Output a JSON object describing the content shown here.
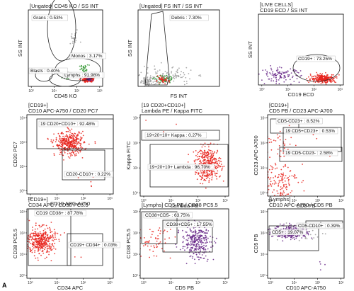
{
  "figure": {
    "panel_letter": "A"
  },
  "colors": {
    "frame": "#000000",
    "gate": "#222222",
    "red": "#e8231c",
    "purple": "#6a2a8a",
    "green": "#3a9a3a",
    "grey": "#9a9a9a",
    "label_bg": "#ffffff"
  },
  "chart_data": [
    {
      "type": "scatter",
      "title": "[Ungated] CD45 KO / SS INT",
      "xlabel": "CD45 KO",
      "ylabel": "SS INT",
      "x_scale": "log",
      "x_ticks": [
        "10⁰",
        "10¹",
        "10²",
        "10³"
      ],
      "y_scale": "linear",
      "xlim": [
        1,
        1000
      ],
      "ylim": [
        0,
        1000
      ],
      "populations": [
        {
          "label": "Grans : 0.53%",
          "color": "grey",
          "center": [
            70,
            620
          ],
          "spread": [
            0.12,
            40
          ],
          "n": 20
        },
        {
          "label": "Monos : 3.17%",
          "color": "green",
          "center": [
            180,
            220
          ],
          "spread": [
            0.1,
            30
          ],
          "n": 40
        },
        {
          "label": "Lymphs : 91.98%",
          "color": "red",
          "center": [
            250,
            95
          ],
          "spread": [
            0.1,
            18
          ],
          "n": 260
        },
        {
          "label": "Lymphs : 91.98%",
          "color": "purple",
          "center": [
            290,
            90
          ],
          "spread": [
            0.05,
            10
          ],
          "n": 50
        },
        {
          "label": "Blasts : 0.40%",
          "color": "green",
          "center": [
            40,
            110
          ],
          "spread": [
            0.1,
            15
          ],
          "n": 8
        }
      ]
    },
    {
      "type": "scatter",
      "title": "[Ungated] FS INT / SS INT",
      "xlabel": "FS INT",
      "ylabel": "SS INT",
      "x_scale": "linear",
      "x_ticks": [],
      "y_scale": "linear",
      "xlim": [
        0,
        1000
      ],
      "ylim": [
        0,
        1000
      ],
      "populations": [
        {
          "label": "Debris : 7.30%",
          "color": "grey",
          "center": [
            90,
            60
          ],
          "spread": [
            40,
            30
          ],
          "n": 60
        },
        {
          "label": "",
          "color": "grey",
          "center": [
            350,
            130
          ],
          "spread": [
            160,
            60
          ],
          "n": 120
        },
        {
          "label": "",
          "color": "green",
          "center": [
            320,
            90
          ],
          "spread": [
            60,
            25
          ],
          "n": 60
        },
        {
          "label": "",
          "color": "red",
          "center": [
            300,
            80
          ],
          "spread": [
            40,
            20
          ],
          "n": 40
        }
      ]
    },
    {
      "type": "scatter",
      "title": "[LIVE CELLS] CD19 ECD / SS INT",
      "xlabel": "CD19 ECD",
      "ylabel": "SS INT",
      "x_scale": "log",
      "x_ticks": [
        "10⁰",
        "10¹",
        "10²",
        "10³"
      ],
      "y_scale": "linear",
      "xlim": [
        1,
        1000
      ],
      "ylim": [
        0,
        1000
      ],
      "populations": [
        {
          "label": "",
          "color": "purple",
          "center": [
            6,
            140
          ],
          "spread": [
            0.35,
            50
          ],
          "n": 110
        },
        {
          "label": "CD19+ : 73.25%",
          "color": "red",
          "center": [
            200,
            90
          ],
          "spread": [
            0.22,
            30
          ],
          "n": 260
        }
      ]
    },
    {
      "type": "scatter",
      "title": "[CD19+] CD10 APC-A750 / CD20 PC7",
      "xlabel": "CD10 APC-A750",
      "ylabel": "CD20 PC7",
      "x_scale": "log",
      "x_ticks": [
        "10⁰",
        "10¹",
        "10²",
        "10³"
      ],
      "y_scale": "log",
      "y_ticks": [
        "10⁰",
        "10¹",
        "10²",
        "10³"
      ],
      "xlim": [
        1,
        1000
      ],
      "ylim": [
        1,
        1000
      ],
      "populations": [
        {
          "label": "19 CD20+CD10+ : 92.48%",
          "color": "red",
          "center": [
            30,
            80
          ],
          "spread": [
            0.25,
            0.22
          ],
          "n": 380
        },
        {
          "label": "CD20-CD10+ : 0.22%",
          "color": "red",
          "center": [
            120,
            2
          ],
          "spread": [
            0.3,
            0.2
          ],
          "n": 5
        }
      ]
    },
    {
      "type": "scatter",
      "title": "[19 CD20+CD10+] Lambda PE / Kappa FITC",
      "xlabel": "Lambda PE",
      "ylabel": "Kappa FITC",
      "x_scale": "log",
      "x_ticks": [
        "10⁰",
        "10¹",
        "10²",
        "10³"
      ],
      "y_scale": "log",
      "y_ticks": [
        "10⁰",
        "10¹",
        "10²",
        "10³"
      ],
      "xlim": [
        1,
        1000
      ],
      "ylim": [
        1,
        1000
      ],
      "populations": [
        {
          "label": "19+20+10+ Lambda : 96.70%",
          "color": "red",
          "center": [
            200,
            15
          ],
          "spread": [
            0.22,
            0.3
          ],
          "n": 380
        },
        {
          "label": "19+20+10+ Kappa : 0.27%",
          "color": "red",
          "center": [
            8,
            300
          ],
          "spread": [
            0.3,
            0.25
          ],
          "n": 4
        }
      ]
    },
    {
      "type": "scatter",
      "title": "[CD19+] CD5 PB / CD23 APC-A700",
      "xlabel": "CD5 PB",
      "ylabel": "CD23 APC-A700",
      "x_scale": "log",
      "x_ticks": [
        "10⁰",
        "10¹",
        "10²",
        "10³"
      ],
      "y_scale": "log",
      "y_ticks": [
        "10⁰",
        "10¹",
        "10²",
        "10³"
      ],
      "xlim": [
        1,
        1000
      ],
      "ylim": [
        1,
        1000
      ],
      "populations": [
        {
          "label": "CD5-CD23+ : 8.52%",
          "color": "red",
          "center": [
            3,
            80
          ],
          "spread": [
            0.3,
            0.3
          ],
          "n": 40
        },
        {
          "label": "19 CD5+CD23+ : 0.53%",
          "color": "red",
          "center": [
            60,
            60
          ],
          "spread": [
            0.3,
            0.3
          ],
          "n": 5
        },
        {
          "label": "19 CD5-CD23- : 2.58%",
          "color": "red",
          "center": [
            3,
            4
          ],
          "spread": [
            0.35,
            0.35
          ],
          "n": 130
        }
      ]
    },
    {
      "type": "scatter",
      "title": "[CD19+] CD34 APC / CD38 PC5.5",
      "xlabel": "CD34 APC",
      "ylabel": "CD38 PC5.5",
      "x_scale": "log",
      "x_ticks": [
        "10⁰",
        "10¹",
        "10²",
        "10³"
      ],
      "y_scale": "log",
      "y_ticks": [
        "10⁰",
        "10¹",
        "10²",
        "10³"
      ],
      "xlim": [
        1,
        1000
      ],
      "ylim": [
        1,
        1000
      ],
      "populations": [
        {
          "label": "CD19 CD38+ : 87.78%",
          "color": "red",
          "center": [
            3,
            40
          ],
          "spread": [
            0.25,
            0.3
          ],
          "n": 380
        },
        {
          "label": "CD19+ CD34+ : 0.03%",
          "color": "red",
          "center": [
            100,
            10
          ],
          "spread": [
            0.2,
            0.2
          ],
          "n": 2
        }
      ]
    },
    {
      "type": "scatter",
      "title": "[Lymphs] CD5 PB / CD38 PC5.5",
      "xlabel": "CD5 PB",
      "ylabel": "CD38 PC5.5",
      "x_scale": "log",
      "x_ticks": [
        "10⁰",
        "10¹",
        "10²",
        "10³"
      ],
      "y_scale": "log",
      "y_ticks": [
        "10⁰",
        "10¹",
        "10²",
        "10³"
      ],
      "xlim": [
        1,
        1000
      ],
      "ylim": [
        1,
        1000
      ],
      "populations": [
        {
          "label": "CD38+CD5- : 63.75%",
          "color": "red",
          "center": [
            3,
            40
          ],
          "spread": [
            0.3,
            0.4
          ],
          "n": 60
        },
        {
          "label": "CD38+CD5+ : 17.55%",
          "color": "purple",
          "center": [
            80,
            40
          ],
          "spread": [
            0.25,
            0.35
          ],
          "n": 300
        }
      ]
    },
    {
      "type": "scatter",
      "title": "[Lymphs] CD10 APC-A750 / CD5 PB",
      "xlabel": "CD10 APC-A750",
      "ylabel": "CD5 PB",
      "x_scale": "log",
      "x_ticks": [
        "10⁰",
        "10¹",
        "10²",
        "10³"
      ],
      "y_scale": "log",
      "y_ticks": [
        "10⁰",
        "10¹",
        "10²",
        "10³"
      ],
      "xlim": [
        1,
        1000
      ],
      "ylim": [
        1,
        1000
      ],
      "populations": [
        {
          "label": "CD5+ : 19.07%",
          "color": "purple",
          "center": [
            8,
            100
          ],
          "spread": [
            0.35,
            0.15
          ],
          "n": 280
        },
        {
          "label": "CD5-CD10+ : 0.39%",
          "color": "purple",
          "center": [
            150,
            5
          ],
          "spread": [
            0.2,
            0.2
          ],
          "n": 4
        },
        {
          "label": "",
          "color": "grey",
          "center": [
            30,
            100
          ],
          "spread": [
            0.5,
            0.2
          ],
          "n": 40
        }
      ]
    }
  ]
}
